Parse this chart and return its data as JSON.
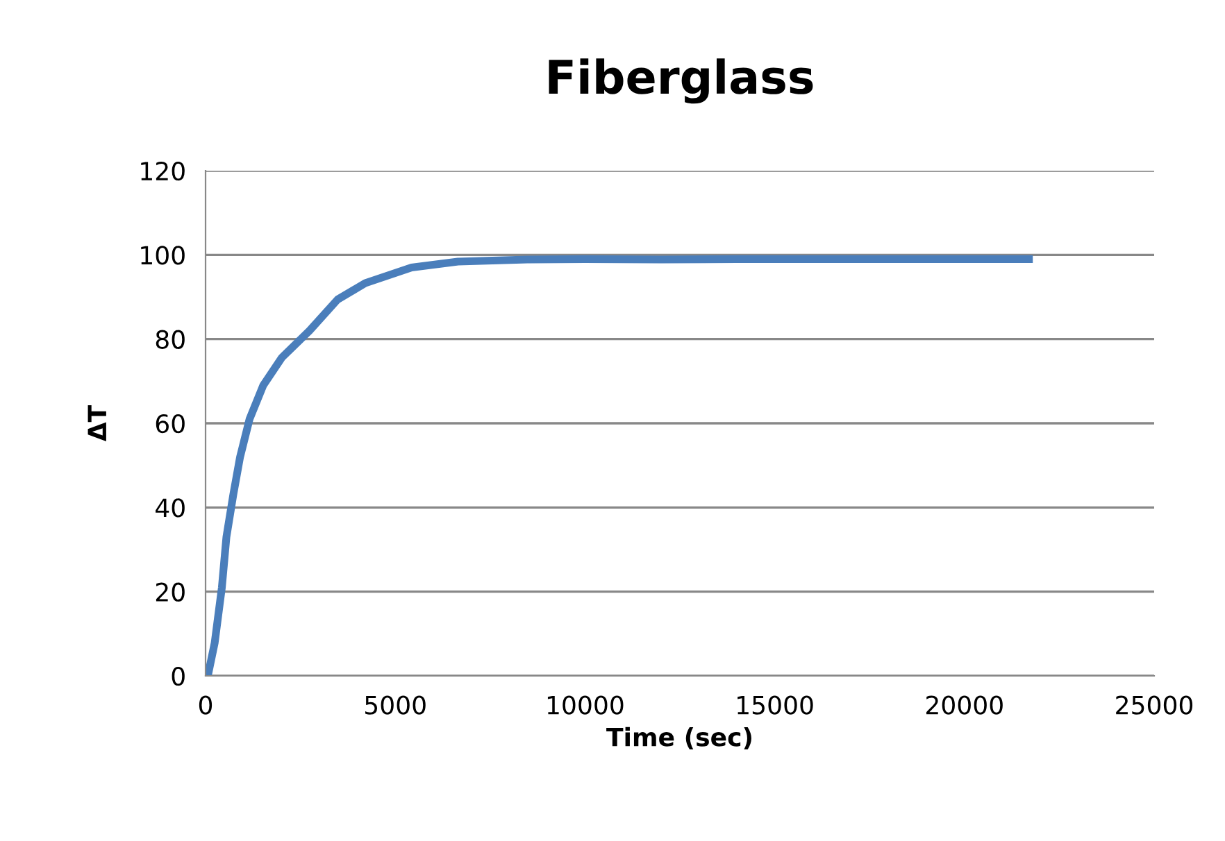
{
  "chart_data": {
    "type": "line",
    "title": "Fiberglass",
    "xlabel": "Time (sec)",
    "ylabel": "ΔT",
    "series": [
      {
        "color": "#4a7ebb",
        "x": [
          0,
          60,
          240,
          430,
          550,
          730,
          910,
          1160,
          1520,
          2010,
          2740,
          3480,
          4210,
          5430,
          6650,
          8480,
          10000,
          12000,
          14000,
          16000,
          18000,
          20000,
          21700
        ],
        "values": [
          0,
          0,
          7.8,
          21,
          33,
          43,
          52,
          61,
          69,
          75.6,
          82,
          89.4,
          93.3,
          97,
          98.4,
          98.9,
          99,
          98.9,
          99,
          99,
          99,
          99,
          99
        ]
      }
    ],
    "xlim": [
      0,
      25000
    ],
    "xticks": [
      0,
      5000,
      10000,
      15000,
      20000,
      25000
    ],
    "ylim": [
      0,
      120
    ],
    "yticks": [
      0,
      20,
      40,
      60,
      80,
      100,
      120
    ],
    "grid": "y",
    "legend": false,
    "marker": "none",
    "line_style": "solid"
  }
}
